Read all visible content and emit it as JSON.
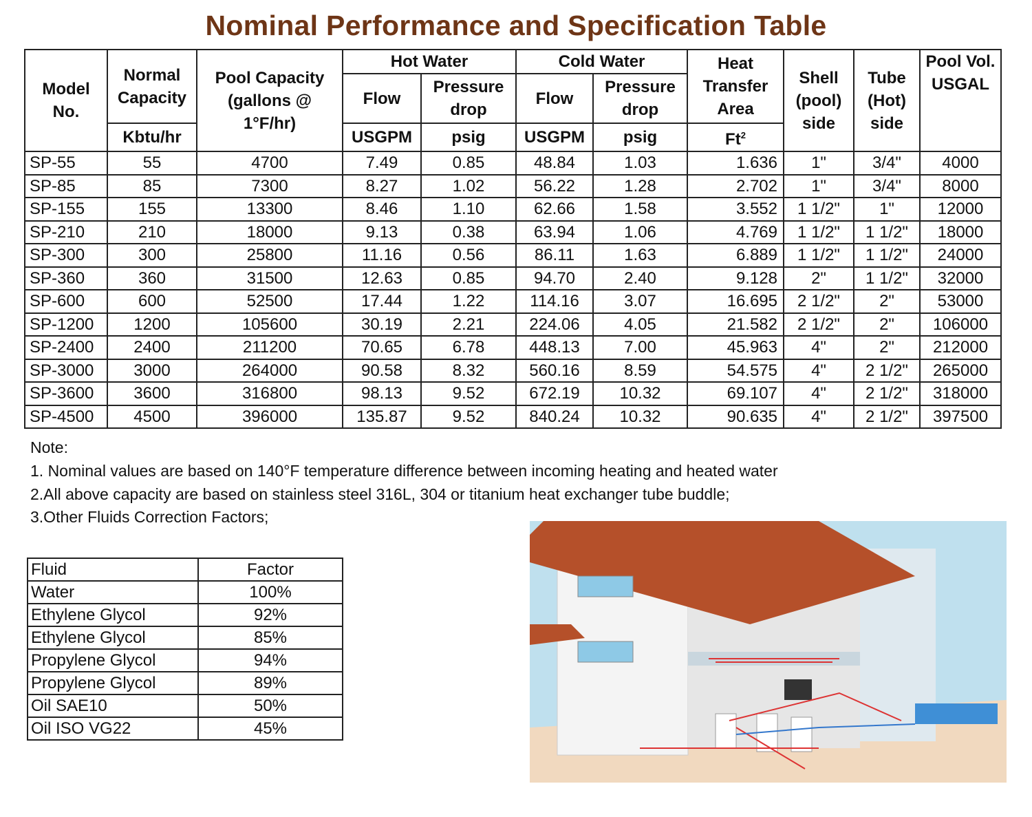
{
  "title": "Nominal Performance and Specification Table",
  "headers": {
    "model": "Model No.",
    "normal_capacity": "Normal Capacity",
    "normal_capacity_unit": "Kbtu/hr",
    "pool_capacity": "Pool Capacity (gallons @ 1°F/hr)",
    "hot_water": "Hot Water",
    "cold_water": "Cold Water",
    "flow": "Flow",
    "pressure_drop": "Pressure drop",
    "flow_unit": "USGPM",
    "pressure_unit": "psig",
    "heat_transfer": "Heat Transfer Area",
    "heat_unit": "Ft",
    "heat_unit_sup": "2",
    "shell": "Shell (pool) side",
    "tube": "Tube (Hot) side",
    "pool_vol": "Pool Vol. USGAL"
  },
  "rows": [
    [
      "SP-55",
      "55",
      "4700",
      "7.49",
      "0.85",
      "48.84",
      "1.03",
      "1.636",
      "1\"",
      "3/4\"",
      "4000"
    ],
    [
      "SP-85",
      "85",
      "7300",
      "8.27",
      "1.02",
      "56.22",
      "1.28",
      "2.702",
      "1\"",
      "3/4\"",
      "8000"
    ],
    [
      "SP-155",
      "155",
      "13300",
      "8.46",
      "1.10",
      "62.66",
      "1.58",
      "3.552",
      "1 1/2\"",
      "1\"",
      "12000"
    ],
    [
      "SP-210",
      "210",
      "18000",
      "9.13",
      "0.38",
      "63.94",
      "1.06",
      "4.769",
      "1 1/2\"",
      "1 1/2\"",
      "18000"
    ],
    [
      "SP-300",
      "300",
      "25800",
      "11.16",
      "0.56",
      "86.11",
      "1.63",
      "6.889",
      "1 1/2\"",
      "1 1/2\"",
      "24000"
    ],
    [
      "SP-360",
      "360",
      "31500",
      "12.63",
      "0.85",
      "94.70",
      "2.40",
      "9.128",
      "2\"",
      "1 1/2\"",
      "32000"
    ],
    [
      "SP-600",
      "600",
      "52500",
      "17.44",
      "1.22",
      "114.16",
      "3.07",
      "16.695",
      "2 1/2\"",
      "2\"",
      "53000"
    ],
    [
      "SP-1200",
      "1200",
      "105600",
      "30.19",
      "2.21",
      "224.06",
      "4.05",
      "21.582",
      "2 1/2\"",
      "2\"",
      "106000"
    ],
    [
      "SP-2400",
      "2400",
      "211200",
      "70.65",
      "6.78",
      "448.13",
      "7.00",
      "45.963",
      "4\"",
      "2\"",
      "212000"
    ],
    [
      "SP-3000",
      "3000",
      "264000",
      "90.58",
      "8.32",
      "560.16",
      "8.59",
      "54.575",
      "4\"",
      "2 1/2\"",
      "265000"
    ],
    [
      "SP-3600",
      "3600",
      "316800",
      "98.13",
      "9.52",
      "672.19",
      "10.32",
      "69.107",
      "4\"",
      "2 1/2\"",
      "318000"
    ],
    [
      "SP-4500",
      "4500",
      "396000",
      "135.87",
      "9.52",
      "840.24",
      "10.32",
      "90.635",
      "4\"",
      "2 1/2\"",
      "397500"
    ]
  ],
  "notes": {
    "heading": "Note:",
    "n1": "1. Nominal values are based on 140°F temperature difference between incoming heating and heated water",
    "n2": "2.All above capacity are based on stainless steel 316L, 304 or titanium heat exchanger tube buddle;",
    "n3": "3.Other Fluids Correction Factors;"
  },
  "fluid_table": {
    "header": [
      "Fluid",
      "Factor"
    ],
    "rows": [
      [
        "Water",
        "100%"
      ],
      [
        "Ethylene Glycol",
        "92%"
      ],
      [
        "Ethylene Glycol",
        "85%"
      ],
      [
        "Propylene Glycol",
        "94%"
      ],
      [
        "Propylene Glycol",
        "89%"
      ],
      [
        "Oil SAE10",
        "50%"
      ],
      [
        "Oil ISO VG22",
        "45%"
      ]
    ]
  },
  "illustration": {
    "icon": "house-heating-system-cutaway",
    "roof_color": "#b5502a",
    "pool_color": "#3f8fd6"
  }
}
